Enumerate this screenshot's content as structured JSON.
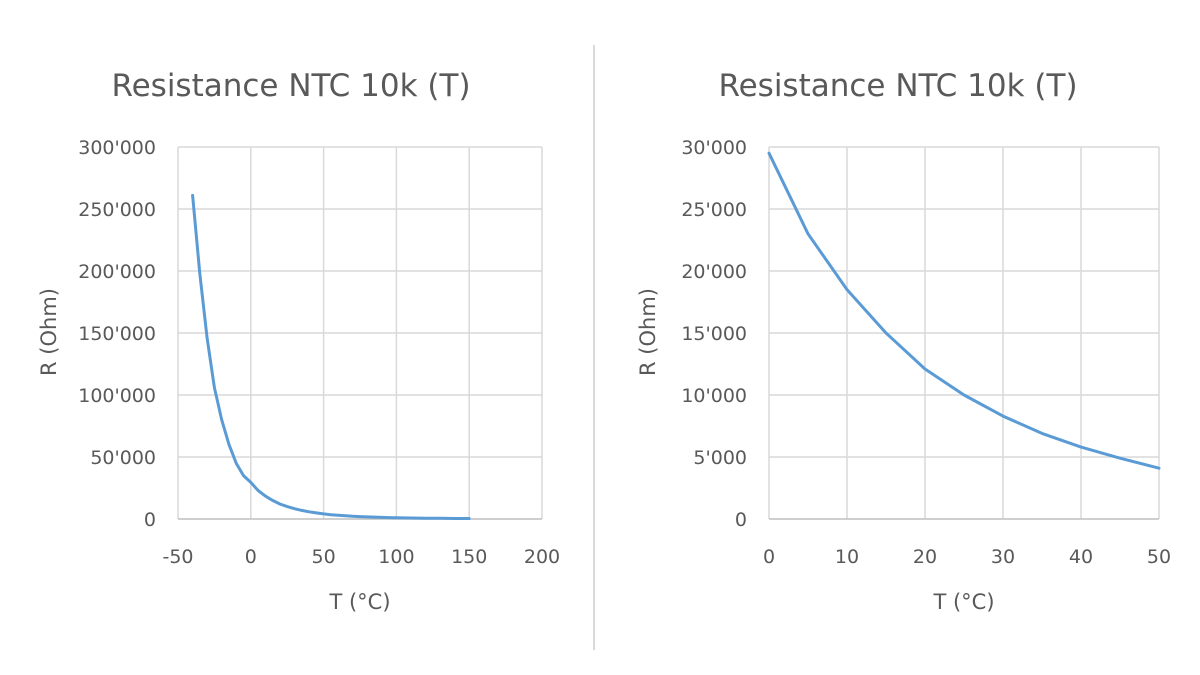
{
  "colors": {
    "series": "#5b9bd5",
    "grid": "#d9d9d9",
    "text": "#595959"
  },
  "chart_data": [
    {
      "type": "line",
      "title": "Resistance NTC 10k (T)",
      "xlabel": "T (°C)",
      "ylabel": "R (Ohm)",
      "xlim": [
        -50,
        200
      ],
      "ylim": [
        0,
        300000
      ],
      "xticks": [
        -50,
        0,
        50,
        100,
        150,
        200
      ],
      "xtick_labels": [
        "-50",
        "0",
        "50",
        "100",
        "150",
        "200"
      ],
      "yticks": [
        0,
        50000,
        100000,
        150000,
        200000,
        250000,
        300000
      ],
      "ytick_labels": [
        "0",
        "50'000",
        "100'000",
        "150'000",
        "200'000",
        "250'000",
        "300'000"
      ],
      "grid": true,
      "series": [
        {
          "name": "R",
          "x": [
            -40,
            -35,
            -30,
            -25,
            -20,
            -15,
            -10,
            -5,
            0,
            5,
            10,
            15,
            20,
            25,
            30,
            35,
            40,
            45,
            50,
            55,
            60,
            65,
            70,
            75,
            80,
            85,
            90,
            95,
            100,
            110,
            120,
            130,
            140,
            150
          ],
          "y": [
            261000,
            198000,
            146000,
            106000,
            80000,
            60000,
            45000,
            35000,
            29500,
            23000,
            18500,
            15000,
            12100,
            10000,
            8300,
            6900,
            5800,
            4900,
            4100,
            3500,
            3000,
            2600,
            2200,
            1900,
            1700,
            1500,
            1300,
            1150,
            1000,
            800,
            650,
            530,
            440,
            370
          ]
        }
      ]
    },
    {
      "type": "line",
      "title": "Resistance NTC 10k (T)",
      "xlabel": "T (°C)",
      "ylabel": "R (Ohm)",
      "xlim": [
        0,
        50
      ],
      "ylim": [
        0,
        30000
      ],
      "xticks": [
        0,
        10,
        20,
        30,
        40,
        50
      ],
      "xtick_labels": [
        "0",
        "10",
        "20",
        "30",
        "40",
        "50"
      ],
      "yticks": [
        0,
        5000,
        10000,
        15000,
        20000,
        25000,
        30000
      ],
      "ytick_labels": [
        "0",
        "5'000",
        "10'000",
        "15'000",
        "20'000",
        "25'000",
        "30'000"
      ],
      "grid": true,
      "series": [
        {
          "name": "R",
          "x": [
            0,
            5,
            10,
            15,
            20,
            25,
            30,
            35,
            40,
            45,
            50
          ],
          "y": [
            29500,
            23000,
            18500,
            15000,
            12100,
            10000,
            8300,
            6900,
            5800,
            4900,
            4100
          ]
        }
      ]
    }
  ]
}
